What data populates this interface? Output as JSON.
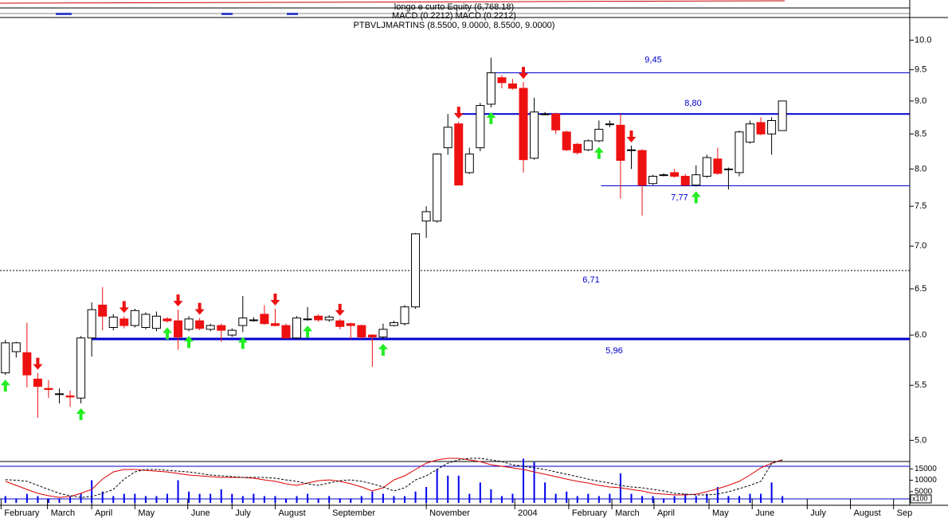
{
  "chart_data": {
    "type": "candlestick",
    "title": "PTBVLJMARTINS (8.5500, 9.0000, 8.5500, 9.0000)",
    "legend_lines": [
      "longo e curto Equity (6,768.18)",
      "MACD (0.2212) MACD (0.2212)"
    ],
    "open": [
      5.62,
      5.83,
      5.82,
      5.56,
      5.47,
      5.42,
      5.4,
      5.38,
      5.97,
      6.32,
      6.08,
      6.17,
      6.1,
      6.08,
      6.07,
      6.17,
      6.15,
      6.06,
      6.15,
      6.06,
      6.1,
      6.0,
      6.1,
      6.16,
      6.22,
      6.12,
      6.1,
      5.97,
      6.17,
      6.2,
      6.16,
      6.15,
      6.12,
      6.1,
      6.0,
      5.98,
      6.1,
      6.12,
      6.3,
      7.31,
      7.31,
      8.3,
      8.65,
      7.95,
      8.3,
      8.95,
      9.37,
      9.27,
      9.2,
      8.15,
      8.8,
      8.8,
      8.53,
      8.35,
      8.27,
      8.4,
      8.65,
      8.63,
      8.27,
      8.26,
      7.8,
      7.92,
      7.95,
      7.9,
      7.78,
      7.9,
      8.14,
      7.99,
      7.95,
      8.38,
      8.67,
      8.5,
      8.55
    ],
    "high": [
      5.95,
      5.93,
      6.13,
      5.62,
      5.55,
      5.47,
      5.45,
      5.99,
      6.35,
      6.52,
      6.22,
      6.2,
      6.28,
      6.24,
      6.25,
      6.19,
      6.27,
      6.2,
      6.18,
      6.12,
      6.12,
      6.07,
      6.42,
      6.19,
      6.32,
      6.28,
      6.12,
      6.2,
      6.3,
      6.22,
      6.21,
      6.17,
      6.13,
      6.11,
      6.01,
      6.12,
      6.15,
      6.32,
      7.16,
      7.5,
      8.22,
      8.8,
      8.68,
      8.3,
      8.97,
      9.7,
      9.41,
      9.35,
      9.3,
      9.05,
      8.83,
      8.82,
      8.55,
      8.37,
      8.42,
      8.7,
      8.7,
      8.8,
      8.33,
      8.28,
      7.92,
      7.94,
      8.0,
      7.93,
      8.05,
      8.2,
      8.3,
      8.02,
      8.55,
      8.7,
      8.75,
      8.75,
      9.0
    ],
    "low": [
      5.6,
      5.77,
      5.48,
      5.2,
      5.38,
      5.33,
      5.3,
      5.33,
      5.78,
      6.05,
      6.05,
      6.07,
      6.08,
      6.06,
      6.04,
      6.13,
      5.85,
      6.04,
      6.05,
      6.04,
      5.93,
      5.98,
      6.03,
      6.14,
      6.11,
      6.09,
      5.96,
      5.96,
      6.15,
      6.14,
      6.14,
      6.06,
      5.96,
      5.96,
      5.68,
      5.96,
      6.09,
      6.1,
      6.28,
      7.1,
      7.29,
      8.2,
      7.78,
      7.93,
      8.25,
      8.9,
      9.2,
      9.18,
      7.95,
      8.13,
      8.78,
      8.5,
      8.25,
      8.2,
      8.25,
      8.38,
      8.6,
      7.6,
      8.0,
      7.38,
      7.78,
      7.9,
      7.88,
      7.76,
      7.76,
      7.88,
      7.92,
      7.72,
      7.9,
      8.36,
      8.48,
      8.2,
      8.55
    ],
    "close": [
      5.92,
      5.92,
      5.6,
      5.49,
      5.46,
      5.42,
      5.39,
      5.97,
      6.27,
      6.2,
      6.19,
      6.1,
      6.26,
      6.22,
      6.2,
      6.15,
      5.98,
      6.17,
      6.07,
      6.1,
      6.05,
      6.05,
      6.18,
      6.16,
      6.12,
      6.1,
      5.97,
      6.18,
      6.17,
      6.16,
      6.19,
      6.09,
      6.1,
      5.98,
      5.98,
      6.06,
      6.13,
      6.3,
      7.15,
      7.43,
      8.21,
      8.6,
      7.78,
      8.21,
      8.93,
      9.45,
      9.29,
      9.2,
      8.13,
      8.83,
      8.8,
      8.56,
      8.27,
      8.23,
      8.4,
      8.57,
      8.65,
      8.12,
      8.27,
      7.78,
      7.9,
      7.92,
      7.9,
      7.78,
      7.92,
      8.16,
      7.94,
      8.0,
      8.53,
      8.65,
      8.5,
      8.7,
      9.0
    ],
    "up_color": "#ffffff",
    "down_color": "#ee1111",
    "log_scale": true,
    "ylim": [
      4.82,
      10.4
    ],
    "yticks": [
      {
        "value": 5,
        "label": "5.0"
      },
      5.5,
      {
        "value": 6,
        "label": "6.0"
      },
      6.5,
      {
        "value": 7,
        "label": "7.0"
      },
      7.5,
      {
        "value": 8,
        "label": "8.0"
      },
      8.5,
      {
        "value": 9,
        "label": "9.0"
      },
      9.5,
      {
        "value": 10,
        "label": "10.0"
      }
    ],
    "xlim": [
      -0.5,
      83.8
    ],
    "xticks": [
      {
        "value": -0.4,
        "label": "February"
      },
      {
        "value": 3.9,
        "label": "March"
      },
      {
        "value": 8.0,
        "label": "April"
      },
      {
        "value": 12.0,
        "label": "May"
      },
      {
        "value": 16.9,
        "label": "June"
      },
      {
        "value": 21.0,
        "label": "July"
      },
      {
        "value": 25.0,
        "label": "August"
      },
      {
        "value": 30.0,
        "label": "September"
      },
      {
        "value": 39.0,
        "label": "November"
      },
      {
        "value": 47.2,
        "label": "2004"
      },
      {
        "value": 52.2,
        "label": "February"
      },
      {
        "value": 56.2,
        "label": "March"
      },
      {
        "value": 60.1,
        "label": "April"
      },
      {
        "value": 65.2,
        "label": "May"
      },
      {
        "value": 69.2,
        "label": "June"
      },
      {
        "value": 74.3,
        "label": "July"
      },
      {
        "value": 78.3,
        "label": "August"
      },
      {
        "value": 82.3,
        "label": "Sep"
      }
    ],
    "levels": [
      {
        "value": 9.45,
        "label": "9,45",
        "start": 45.2,
        "style": "solid"
      },
      {
        "value": 8.8,
        "label": "8,80",
        "start": 41.9,
        "style": "bold"
      },
      {
        "value": 7.77,
        "label": "7,77",
        "start": 55.2,
        "style": "solid"
      },
      {
        "value": 6.71,
        "label": "6,71",
        "start": -0.5,
        "style": "dotted"
      },
      {
        "value": 5.96,
        "label": "5,96",
        "start": 8.0,
        "style": "heavy"
      }
    ],
    "level_color": "#0000cc",
    "buy_signals": [
      0,
      7,
      15,
      17,
      22,
      28,
      35,
      45,
      55,
      64
    ],
    "sell_signals": [
      3,
      11,
      16,
      18,
      25,
      31,
      42,
      48,
      58
    ],
    "buy_color": "#22ee22",
    "sell_color": "#ee1111",
    "volume": {
      "color": "#0000ee",
      "ylim": [
        0,
        20000
      ],
      "yticks": [
        5000,
        10000,
        15000
      ],
      "unit_label": "x100",
      "values": [
        3000,
        2000,
        4000,
        3000,
        2000,
        2000,
        3000,
        4000,
        10000,
        5000,
        3000,
        4000,
        4000,
        3000,
        3000,
        4000,
        10000,
        5000,
        4000,
        4000,
        6000,
        4000,
        3000,
        4000,
        3000,
        3000,
        2000,
        3000,
        4000,
        2000,
        3000,
        2000,
        2000,
        3000,
        5000,
        4000,
        3000,
        3000,
        5000,
        7000,
        15000,
        12000,
        12000,
        4000,
        9000,
        6000,
        3000,
        4000,
        19500,
        18000,
        9000,
        4000,
        5000,
        3000,
        4000,
        3000,
        4000,
        13000,
        4000,
        3000,
        3000,
        2000,
        3000,
        4000,
        3000,
        4000,
        7000,
        3000,
        3000,
        4000,
        4000,
        9000,
        3000
      ]
    },
    "macd": {
      "ylim": [
        -0.152,
        0.242
      ],
      "series": [
        {
          "color": "#dd0000",
          "style": "solid",
          "values": [
            0.035,
            0,
            -0.035,
            -0.069,
            -0.09,
            -0.104,
            -0.097,
            -0.069,
            -0.035,
            0.055,
            0.117,
            0.138,
            0.138,
            0.131,
            0.124,
            0.117,
            0.104,
            0.09,
            0.083,
            0.076,
            0.069,
            0.069,
            0.069,
            0.062,
            0.048,
            0.035,
            0.014,
            0,
            0.021,
            0.041,
            0.048,
            0.035,
            0.014,
            -0.014,
            -0.048,
            -0.021,
            0.048,
            0.083,
            0.138,
            0.193,
            0.221,
            0.235,
            0.235,
            0.221,
            0.207,
            0.179,
            0.166,
            0.152,
            0.138,
            0.117,
            0.097,
            0.076,
            0.055,
            0.035,
            0.021,
            0,
            -0.014,
            -0.021,
            -0.035,
            -0.048,
            -0.069,
            -0.076,
            -0.083,
            -0.083,
            -0.076,
            -0.055,
            -0.028,
            0,
            0.035,
            0.09,
            0.152,
            0.193,
            0.221
          ]
        },
        {
          "color": "#000000",
          "style": "dashed",
          "values": [
            0.05,
            0.045,
            0.035,
            0,
            -0.035,
            -0.069,
            -0.09,
            -0.104,
            -0.097,
            -0.069,
            -0.035,
            0.055,
            0.117,
            0.138,
            0.138,
            0.131,
            0.124,
            0.117,
            0.104,
            0.09,
            0.083,
            0.076,
            0.069,
            0.069,
            0.069,
            0.062,
            0.048,
            0.035,
            0.014,
            0,
            0.021,
            0.041,
            0.048,
            0.035,
            0.014,
            -0.014,
            -0.048,
            -0.021,
            0.048,
            0.083,
            0.138,
            0.193,
            0.221,
            0.235,
            0.235,
            0.221,
            0.207,
            0.179,
            0.166,
            0.152,
            0.138,
            0.117,
            0.097,
            0.076,
            0.055,
            0.035,
            0.021,
            0,
            -0.014,
            -0.021,
            -0.035,
            -0.048,
            -0.069,
            -0.076,
            -0.083,
            -0.083,
            -0.076,
            -0.055,
            -0.028,
            0,
            0.035,
            0.19,
            0.221
          ]
        }
      ]
    }
  }
}
